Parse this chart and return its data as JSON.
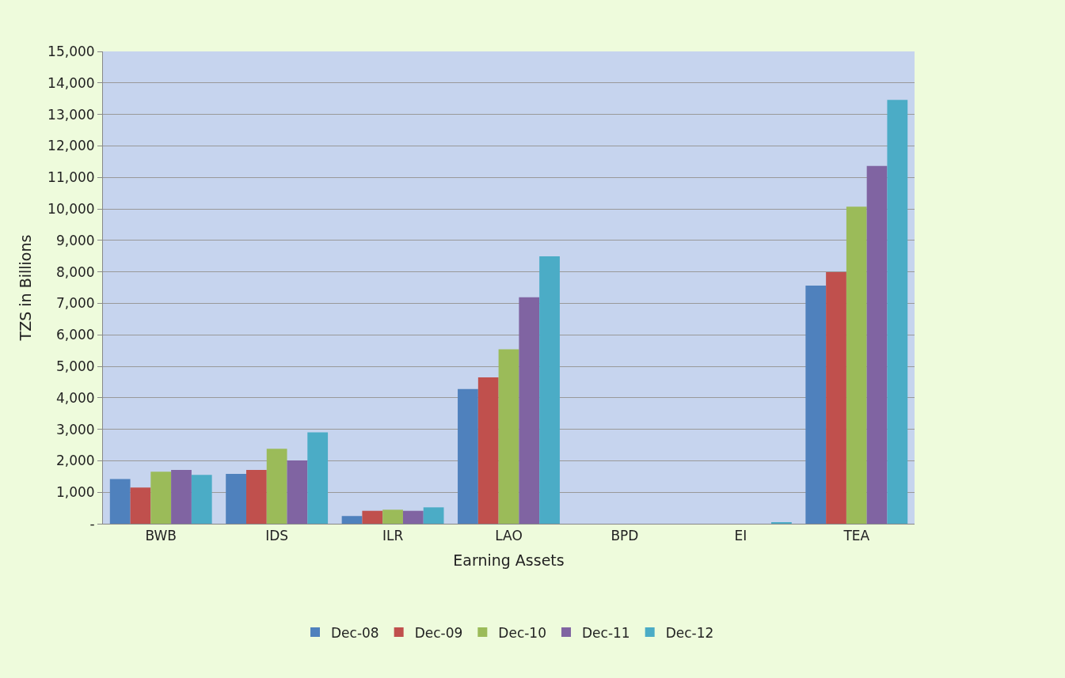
{
  "chart_data": {
    "type": "bar",
    "xlabel": "Earning Assets",
    "ylabel": "TZS in Billions",
    "categories": [
      "BWB",
      "IDS",
      "ILR",
      "LAO",
      "BPD",
      "EI",
      "TEA"
    ],
    "series": [
      {
        "name": "Dec-08",
        "color": "#4f81bd",
        "values": [
          1420,
          1580,
          245,
          4280,
          0,
          0,
          7560
        ]
      },
      {
        "name": "Dec-09",
        "color": "#c0504d",
        "values": [
          1150,
          1710,
          410,
          4650,
          0,
          0,
          7990
        ]
      },
      {
        "name": "Dec-10",
        "color": "#9bbb59",
        "values": [
          1650,
          2380,
          445,
          5540,
          0,
          0,
          10070
        ]
      },
      {
        "name": "Dec-11",
        "color": "#8064a2",
        "values": [
          1710,
          2010,
          410,
          7190,
          0,
          0,
          11360
        ]
      },
      {
        "name": "Dec-12",
        "color": "#4bacc6",
        "values": [
          1550,
          2900,
          520,
          8490,
          0,
          40,
          13460
        ]
      }
    ],
    "ylim": [
      0,
      15000
    ],
    "yticks": [
      {
        "value": 0,
        "label": "-"
      },
      {
        "value": 1000,
        "label": "1,000"
      },
      {
        "value": 2000,
        "label": "2,000"
      },
      {
        "value": 3000,
        "label": "3,000"
      },
      {
        "value": 4000,
        "label": "4,000"
      },
      {
        "value": 5000,
        "label": "5,000"
      },
      {
        "value": 6000,
        "label": "6,000"
      },
      {
        "value": 7000,
        "label": "7,000"
      },
      {
        "value": 8000,
        "label": "8,000"
      },
      {
        "value": 9000,
        "label": "9,000"
      },
      {
        "value": 10000,
        "label": "10,000"
      },
      {
        "value": 11000,
        "label": "11,000"
      },
      {
        "value": 12000,
        "label": "12,000"
      },
      {
        "value": 13000,
        "label": "13,000"
      },
      {
        "value": 14000,
        "label": "14,000"
      },
      {
        "value": 15000,
        "label": "15,000"
      }
    ],
    "grid": "y",
    "legend": "bottom"
  }
}
